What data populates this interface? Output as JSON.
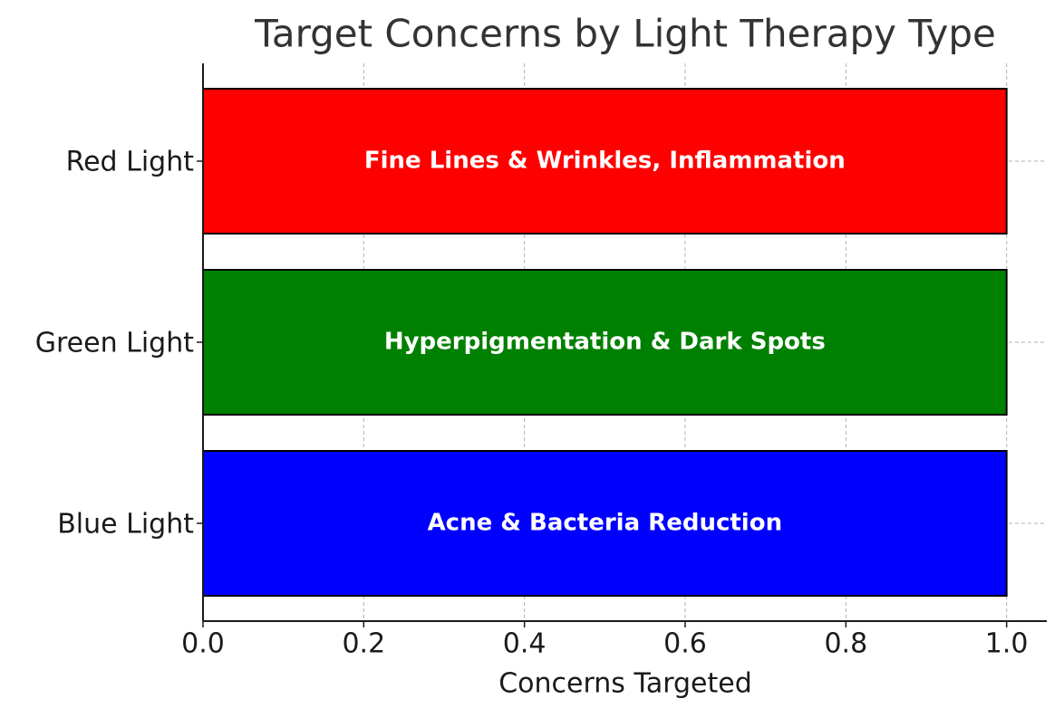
{
  "chart_data": {
    "type": "barh",
    "title": "Target Concerns by Light Therapy Type",
    "x_label": "Concerns Targeted",
    "categories": [
      "Blue Light",
      "Green Light",
      "Red Light"
    ],
    "values": [
      1,
      1,
      1
    ],
    "colors": [
      "blue",
      "green",
      "red"
    ],
    "bar_labels": [
      "Acne & Bacteria Reduction",
      "Hyperpigmentation & Dark Spots",
      "Fine Lines & Wrinkles, Inflammation"
    ],
    "xlim": [
      0,
      1.05
    ],
    "xticks": [
      {
        "value": 0,
        "label": "0.0"
      },
      0.2,
      0.4,
      0.6,
      0.8,
      {
        "value": 1,
        "label": "1.0"
      }
    ],
    "grid": true
  }
}
